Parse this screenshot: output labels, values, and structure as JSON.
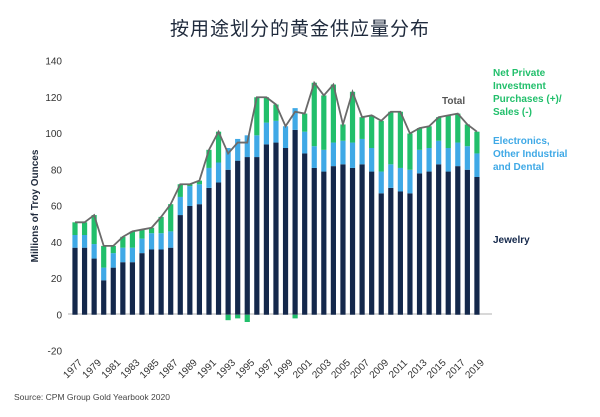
{
  "chart_data": {
    "type": "bar",
    "title": "按用途划分的黄金供应量分布",
    "ylabel": "Millions of Troy Ounces",
    "ylim": [
      -20,
      140
    ],
    "yticks": [
      -20,
      0,
      20,
      40,
      60,
      80,
      100,
      120,
      140
    ],
    "xtick_labels": [
      "1977",
      "1979",
      "1981",
      "1983",
      "1985",
      "1987",
      "1989",
      "1991",
      "1993",
      "1995",
      "1997",
      "1999",
      "2001",
      "2003",
      "2005",
      "2007",
      "2009",
      "2011",
      "2013",
      "2015",
      "2017",
      "2019"
    ],
    "x": [
      1977,
      1978,
      1979,
      1980,
      1981,
      1982,
      1983,
      1984,
      1985,
      1986,
      1987,
      1988,
      1989,
      1990,
      1991,
      1992,
      1993,
      1994,
      1995,
      1996,
      1997,
      1998,
      1999,
      2000,
      2001,
      2002,
      2003,
      2004,
      2005,
      2006,
      2007,
      2008,
      2009,
      2010,
      2011,
      2012,
      2013,
      2014,
      2015,
      2016,
      2017,
      2018,
      2019
    ],
    "series": [
      {
        "name": "Jewelry",
        "color": "#14284b",
        "values": [
          37,
          37,
          31,
          19,
          26,
          29,
          29,
          34,
          36,
          36,
          37,
          55,
          60,
          61,
          70,
          73,
          80,
          85,
          87,
          87,
          94,
          95,
          92,
          102,
          89,
          81,
          79,
          82,
          83,
          81,
          83,
          79,
          67,
          70,
          68,
          67,
          78,
          79,
          83,
          79,
          82,
          80,
          76
        ]
      },
      {
        "name": "Electronics, Other Industrial and Dental",
        "color": "#3fa9e6",
        "values": [
          7,
          7,
          8,
          7,
          8,
          8,
          8,
          8,
          9,
          9,
          9,
          10,
          11,
          11,
          11,
          11,
          12,
          12,
          12,
          12,
          12,
          12,
          12,
          12,
          12,
          12,
          12,
          13,
          13,
          14,
          14,
          13,
          12,
          13,
          13,
          13,
          13,
          13,
          13,
          13,
          13,
          13,
          13
        ]
      },
      {
        "name": "Net Private Investment Purchases (+)/ Sales (-)",
        "color": "#21bf6b",
        "values": [
          7,
          7,
          16,
          12,
          4,
          6,
          9,
          5,
          3,
          9,
          15,
          7,
          1,
          2,
          10,
          17,
          -3,
          -2,
          -4,
          21,
          14,
          9,
          0,
          -2,
          10,
          35,
          30,
          32,
          9,
          28,
          12,
          18,
          28,
          29,
          31,
          20,
          12,
          12,
          13,
          18,
          16,
          12,
          12
        ]
      }
    ],
    "total": {
      "name": "Total",
      "color": "#6a6a6a",
      "values": [
        51,
        51,
        55,
        38,
        38,
        43,
        46,
        47,
        48,
        54,
        61,
        72,
        72,
        74,
        91,
        101,
        89,
        95,
        95,
        120,
        120,
        116,
        104,
        112,
        111,
        128,
        121,
        127,
        105,
        123,
        109,
        110,
        107,
        112,
        112,
        100,
        103,
        104,
        109,
        110,
        111,
        105,
        101
      ]
    },
    "grid": false,
    "legend": "right"
  },
  "source": "Source: CPM Group Gold Yearbook 2020"
}
